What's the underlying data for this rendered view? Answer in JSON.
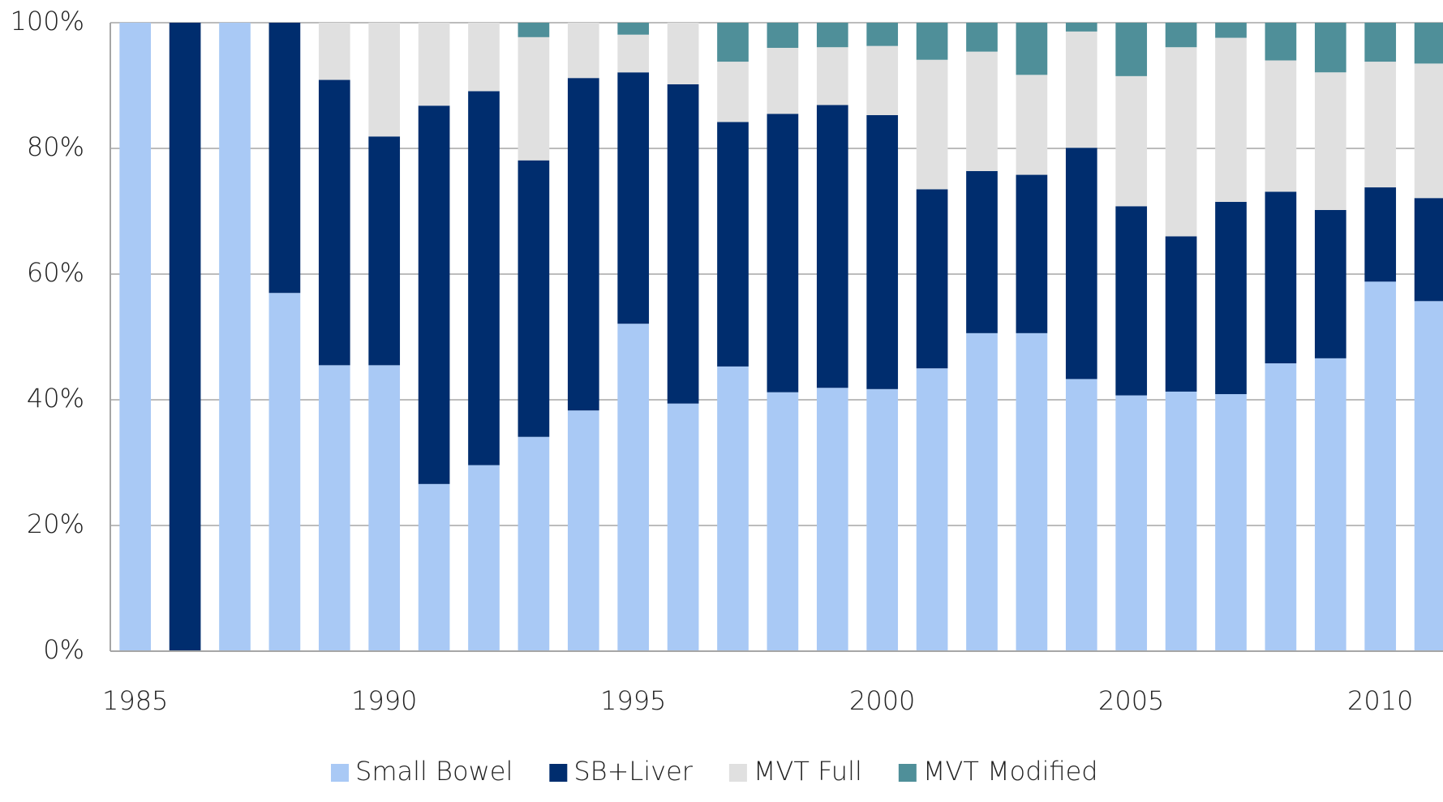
{
  "chart_data": {
    "type": "stacked_bar",
    "categories": [
      "1985",
      null,
      null,
      null,
      null,
      "1990",
      null,
      null,
      null,
      null,
      "1995",
      null,
      null,
      null,
      null,
      "2000",
      null,
      null,
      null,
      null,
      "2005",
      null,
      null,
      null,
      null,
      "2010",
      null
    ],
    "series": [
      {
        "name": "Small Bowel",
        "color": "#a9c9f5",
        "values": [
          100,
          0,
          100,
          57,
          45.5,
          45.5,
          26.6,
          29.6,
          34.1,
          38.3,
          52.1,
          39.4,
          45.3,
          41.2,
          41.9,
          41.7,
          45,
          50.6,
          50.6,
          43.3,
          40.7,
          41.3,
          40.9,
          45.8,
          46.6,
          58.8,
          55.7
        ]
      },
      {
        "name": "SB+Liver",
        "color": "#002d6e",
        "values": [
          0,
          100,
          0,
          43,
          45.4,
          36.4,
          60.2,
          59.5,
          44,
          52.9,
          40,
          50.8,
          38.9,
          44.3,
          45,
          43.6,
          28.5,
          25.8,
          25.2,
          36.8,
          30.1,
          24.7,
          30.6,
          27.3,
          23.6,
          15,
          16.4
        ]
      },
      {
        "name": "MVT Full",
        "color": "#e0e0e0",
        "values": [
          0,
          0,
          0,
          0,
          9.1,
          18.1,
          13.2,
          10.9,
          19.6,
          8.8,
          6,
          9.8,
          9.6,
          10.5,
          9.2,
          11,
          20.6,
          19,
          15.9,
          18.5,
          20.7,
          30.1,
          26.1,
          20.9,
          21.9,
          20,
          21.4
        ]
      },
      {
        "name": "MVT Modified",
        "color": "#4f8f99",
        "values": [
          0,
          0,
          0,
          0,
          0,
          0,
          0,
          0,
          2.3,
          0,
          1.9,
          0,
          6.2,
          4,
          3.9,
          3.7,
          5.9,
          4.6,
          8.3,
          1.4,
          8.5,
          3.9,
          2.4,
          6,
          7.9,
          6.2,
          6.5
        ]
      }
    ],
    "ylim": [
      0,
      100
    ],
    "yticks": [
      {
        "value": 0,
        "label": "0%"
      },
      {
        "value": 20,
        "label": "20%"
      },
      {
        "value": 40,
        "label": "40%"
      },
      {
        "value": 60,
        "label": "60%"
      },
      {
        "value": 80,
        "label": "80%"
      },
      {
        "value": 100,
        "label": "100%"
      }
    ],
    "grid": true,
    "legend": "bottom"
  }
}
